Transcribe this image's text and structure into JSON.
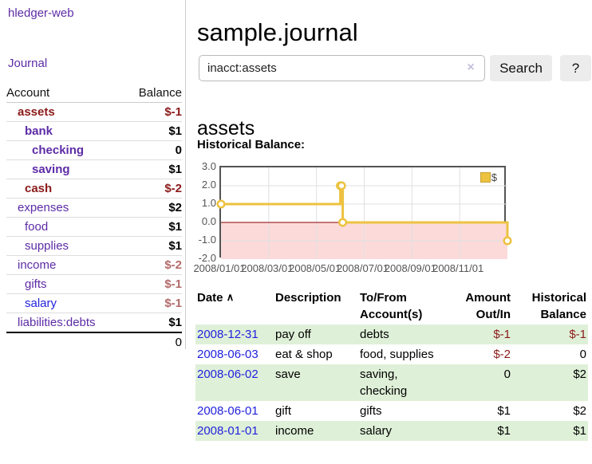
{
  "colors": {
    "purple": "#5d2ba6",
    "darkred": "#8b1a1a",
    "mutedred": "#b36a6a",
    "blue": "#2222dd",
    "black": "#000000",
    "negative": "#8b1a1a",
    "link_blue": "#2222dd",
    "stripe_green": "#dff0d8",
    "accent_gold": "#edc240"
  },
  "brand": "hledger-web",
  "nav": {
    "journal_label": "Journal"
  },
  "sidebar": {
    "headers": {
      "account": "Account",
      "balance": "Balance"
    },
    "accounts": [
      {
        "name": "assets",
        "depth": 1,
        "bold": true,
        "name_color": "darkred",
        "balance": "$-1",
        "balance_color": "darkred"
      },
      {
        "name": "bank",
        "depth": 2,
        "bold": true,
        "name_color": "purple",
        "balance": "$1",
        "balance_color": "black"
      },
      {
        "name": "checking",
        "depth": 3,
        "bold": true,
        "name_color": "purple",
        "balance": "0",
        "balance_color": "black"
      },
      {
        "name": "saving",
        "depth": 3,
        "bold": true,
        "name_color": "purple",
        "balance": "$1",
        "balance_color": "black"
      },
      {
        "name": "cash",
        "depth": 2,
        "bold": true,
        "name_color": "darkred",
        "balance": "$-2",
        "balance_color": "darkred"
      },
      {
        "name": "expenses",
        "depth": 1,
        "bold": false,
        "name_color": "purple",
        "balance": "$2",
        "balance_color": "black"
      },
      {
        "name": "food",
        "depth": 2,
        "bold": false,
        "name_color": "purple",
        "balance": "$1",
        "balance_color": "black"
      },
      {
        "name": "supplies",
        "depth": 2,
        "bold": false,
        "name_color": "purple",
        "balance": "$1",
        "balance_color": "black"
      },
      {
        "name": "income",
        "depth": 1,
        "bold": false,
        "name_color": "purple",
        "balance": "$-2",
        "balance_color": "mutedred"
      },
      {
        "name": "gifts",
        "depth": 2,
        "bold": false,
        "name_color": "purple",
        "balance": "$-1",
        "balance_color": "mutedred"
      },
      {
        "name": "salary",
        "depth": 2,
        "bold": false,
        "name_color": "blue",
        "balance": "$-1",
        "balance_color": "mutedred"
      },
      {
        "name": "liabilities:debts",
        "depth": 1,
        "bold": false,
        "name_color": "purple",
        "balance": "$1",
        "balance_color": "black"
      }
    ],
    "total": "0"
  },
  "header": {
    "title": "sample.journal"
  },
  "search": {
    "value": "inacct:assets",
    "clear_icon": "×",
    "button_label": "Search",
    "help_label": "?"
  },
  "account_page": {
    "heading": "assets",
    "chart_label": "Historical Balance:"
  },
  "chart_data": {
    "type": "line",
    "title": "Historical Balance:",
    "xlabel": "",
    "ylabel": "",
    "xlim": [
      0,
      12
    ],
    "ylim": [
      -2,
      3
    ],
    "grid": true,
    "legend_position": "top-right",
    "legend": {
      "label": "$",
      "swatch_color": "#edc240"
    },
    "series": [
      {
        "name": "$",
        "color": "#edc240",
        "steps": true,
        "points": [
          {
            "date": "2008/01/01",
            "x": 0,
            "y": 1
          },
          {
            "date": "2008/06/01",
            "x": 5.0,
            "y": 2
          },
          {
            "date": "2008/06/02",
            "x": 5.05,
            "y": 2
          },
          {
            "date": "2008/06/03",
            "x": 5.1,
            "y": 0
          },
          {
            "date": "2008/12/31",
            "x": 12,
            "y": -1
          }
        ]
      }
    ],
    "x_ticks": [
      {
        "x": 0,
        "label": "2008/01/01"
      },
      {
        "x": 2,
        "label": "2008/03/01"
      },
      {
        "x": 4,
        "label": "2008/05/01"
      },
      {
        "x": 6,
        "label": "2008/07/01"
      },
      {
        "x": 8,
        "label": "2008/09/01"
      },
      {
        "x": 10,
        "label": "2008/11/01"
      }
    ],
    "y_ticks": [
      {
        "y": 3,
        "label": "3.0"
      },
      {
        "y": 2,
        "label": "2.0"
      },
      {
        "y": 1,
        "label": "1.0"
      },
      {
        "y": 0,
        "label": "0.0"
      },
      {
        "y": -1,
        "label": "-1.0"
      },
      {
        "y": -2,
        "label": "-2.0"
      }
    ],
    "zero_line_color": "#8b0000",
    "negative_fill": "#fcdada",
    "grid_color": "#e0e0e0",
    "border_color": "#545454"
  },
  "register": {
    "sort_icon": "∧",
    "headers": {
      "date": "Date",
      "description": "Description",
      "tofrom_line1": "To/From",
      "tofrom_line2": "Account(s)",
      "amount_line1": "Amount",
      "amount_line2": "Out/In",
      "balance_line1": "Historical",
      "balance_line2": "Balance"
    },
    "rows": [
      {
        "date": "2008-12-31",
        "description": "pay off",
        "accounts": "debts",
        "amount": "$-1",
        "amount_neg": true,
        "balance": "$-1",
        "balance_neg": true
      },
      {
        "date": "2008-06-03",
        "description": "eat & shop",
        "accounts": "food, supplies",
        "amount": "$-2",
        "amount_neg": true,
        "balance": "0",
        "balance_neg": false
      },
      {
        "date": "2008-06-02",
        "description": "save",
        "accounts": "saving, checking",
        "amount": "0",
        "amount_neg": false,
        "balance": "$2",
        "balance_neg": false
      },
      {
        "date": "2008-06-01",
        "description": "gift",
        "accounts": "gifts",
        "amount": "$1",
        "amount_neg": false,
        "balance": "$2",
        "balance_neg": false
      },
      {
        "date": "2008-01-01",
        "description": "income",
        "accounts": "salary",
        "amount": "$1",
        "amount_neg": false,
        "balance": "$1",
        "balance_neg": false
      }
    ]
  }
}
